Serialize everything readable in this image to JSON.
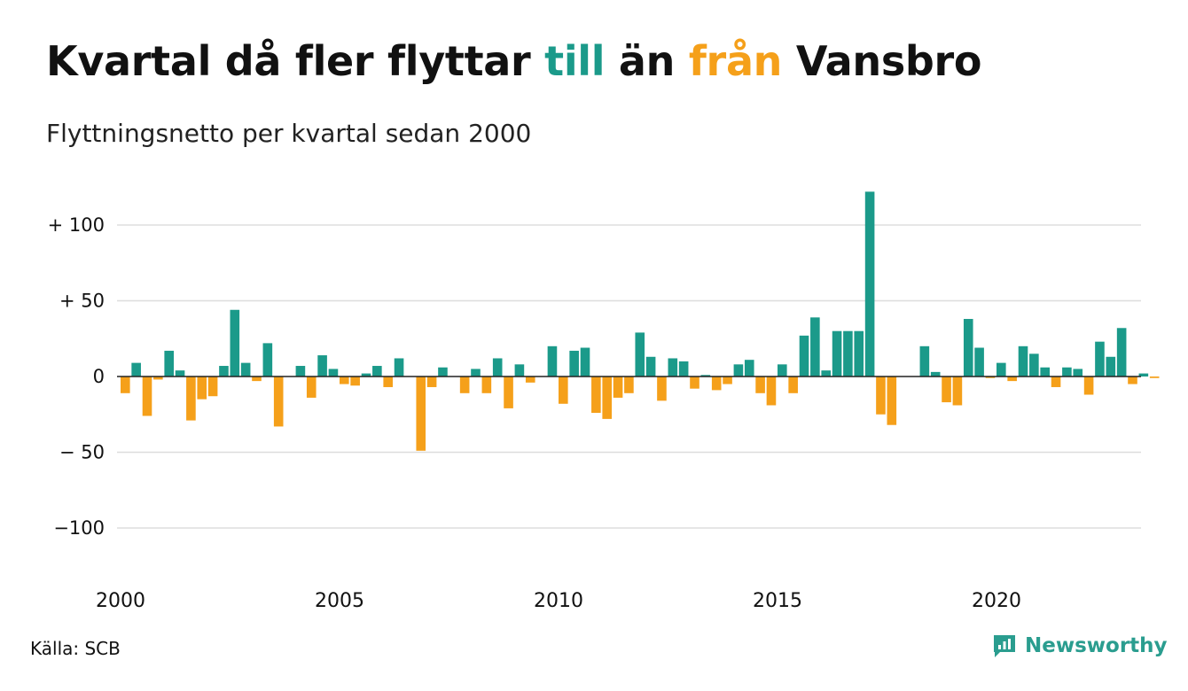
{
  "header": {
    "title_part1": "Kvartal då fler flyttar ",
    "title_in": "till",
    "title_part2": " än ",
    "title_out": "från",
    "title_part3": " Vansbro",
    "subtitle": "Flyttningsnetto per kvartal sedan 2000"
  },
  "footer": {
    "source": "Källa: SCB",
    "brand": "Newsworthy"
  },
  "colors": {
    "positive": "#1b9a8a",
    "negative": "#f5a01a",
    "grid": "#dddddd",
    "zero_line": "#222222"
  },
  "chart_data": {
    "type": "bar",
    "title": "Kvartal då fler flyttar till än från Vansbro",
    "subtitle": "Flyttningsnetto per kvartal sedan 2000",
    "xlabel": "",
    "ylabel": "",
    "ylim": [
      -135,
      125
    ],
    "y_ticks": [
      {
        "value": 100,
        "label": "+ 100"
      },
      {
        "value": 50,
        "label": "+  50"
      },
      {
        "value": 0,
        "label": "0"
      },
      {
        "value": -50,
        "label": "− 50"
      },
      {
        "value": -100,
        "label": "−100"
      }
    ],
    "x_ticks": [
      {
        "year": 2000,
        "label": "2000"
      },
      {
        "year": 2005,
        "label": "2005"
      },
      {
        "year": 2010,
        "label": "2010"
      },
      {
        "year": 2015,
        "label": "2015"
      },
      {
        "year": 2020,
        "label": "2020"
      }
    ],
    "start_year": 2000,
    "quarters_per_year": 4,
    "grid": true,
    "legend": "none",
    "values": [
      -11,
      9,
      -26,
      -2,
      17,
      4,
      -29,
      -15,
      -13,
      7,
      44,
      9,
      -3,
      22,
      -33,
      0,
      7,
      -14,
      14,
      5,
      -5,
      -6,
      2,
      7,
      -7,
      12,
      0,
      -49,
      -7,
      6,
      0,
      -11,
      5,
      -11,
      12,
      -21,
      8,
      -4,
      0,
      20,
      -18,
      17,
      19,
      -24,
      -28,
      -14,
      -11,
      29,
      13,
      -16,
      12,
      10,
      -8,
      1,
      -9,
      -5,
      8,
      11,
      -11,
      -19,
      8,
      -11,
      27,
      39,
      4,
      30,
      30,
      30,
      122,
      -25,
      -32,
      0,
      0,
      20,
      3,
      -17,
      -19,
      38,
      19,
      -1,
      9,
      -3,
      20,
      15,
      6,
      -7,
      6,
      5,
      -12,
      23,
      13,
      32,
      -5,
      2,
      -1
    ]
  }
}
